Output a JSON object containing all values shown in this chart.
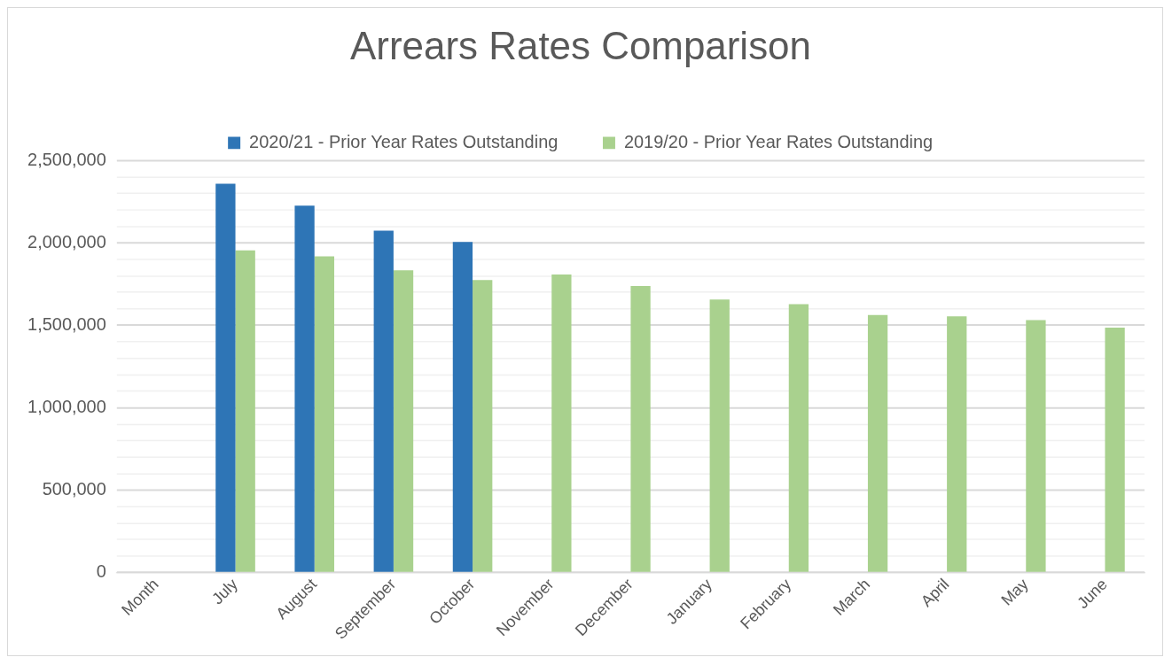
{
  "chart_data": {
    "type": "bar",
    "title": "Arrears Rates Comparison",
    "categories": [
      "Month",
      "July",
      "August",
      "September",
      "October",
      "November",
      "December",
      "January",
      "February",
      "March",
      "April",
      "May",
      "June"
    ],
    "series": [
      {
        "name": "2020/21 - Prior Year Rates Outstanding",
        "color": "#2e75b6",
        "values": [
          null,
          2360000,
          2227000,
          2075000,
          2006000,
          null,
          null,
          null,
          null,
          null,
          null,
          null,
          null
        ]
      },
      {
        "name": "2019/20 - Prior Year Rates Outstanding",
        "color": "#a9d18e",
        "values": [
          null,
          1955000,
          1919000,
          1834000,
          1775000,
          1809000,
          1739000,
          1657000,
          1629000,
          1563000,
          1555000,
          1532000,
          1487000
        ]
      }
    ],
    "ylim": [
      0,
      2500000
    ],
    "yticks": [
      0,
      {
        "value": 100000,
        "label": null
      },
      {
        "value": 200000,
        "label": null
      },
      {
        "value": 300000,
        "label": null
      },
      {
        "value": 400000,
        "label": null
      },
      {
        "value": 500000,
        "label": "500,000"
      },
      {
        "value": 600000,
        "label": null
      },
      {
        "value": 700000,
        "label": null
      },
      {
        "value": 800000,
        "label": null
      },
      {
        "value": 900000,
        "label": null
      },
      {
        "value": 1000000,
        "label": "1,000,000"
      },
      {
        "value": 1100000,
        "label": null
      },
      {
        "value": 1200000,
        "label": null
      },
      {
        "value": 1300000,
        "label": null
      },
      {
        "value": 1400000,
        "label": null
      },
      {
        "value": 1500000,
        "label": "1,500,000"
      },
      {
        "value": 1600000,
        "label": null
      },
      {
        "value": 1700000,
        "label": null
      },
      {
        "value": 1800000,
        "label": null
      },
      {
        "value": 1900000,
        "label": null
      },
      {
        "value": 2000000,
        "label": "2,000,000"
      },
      {
        "value": 2100000,
        "label": null
      },
      {
        "value": 2200000,
        "label": null
      },
      {
        "value": 2300000,
        "label": null
      },
      {
        "value": 2400000,
        "label": null
      },
      {
        "value": 2500000,
        "label": "2,500,000"
      }
    ],
    "grid": "y",
    "legend": "top"
  }
}
